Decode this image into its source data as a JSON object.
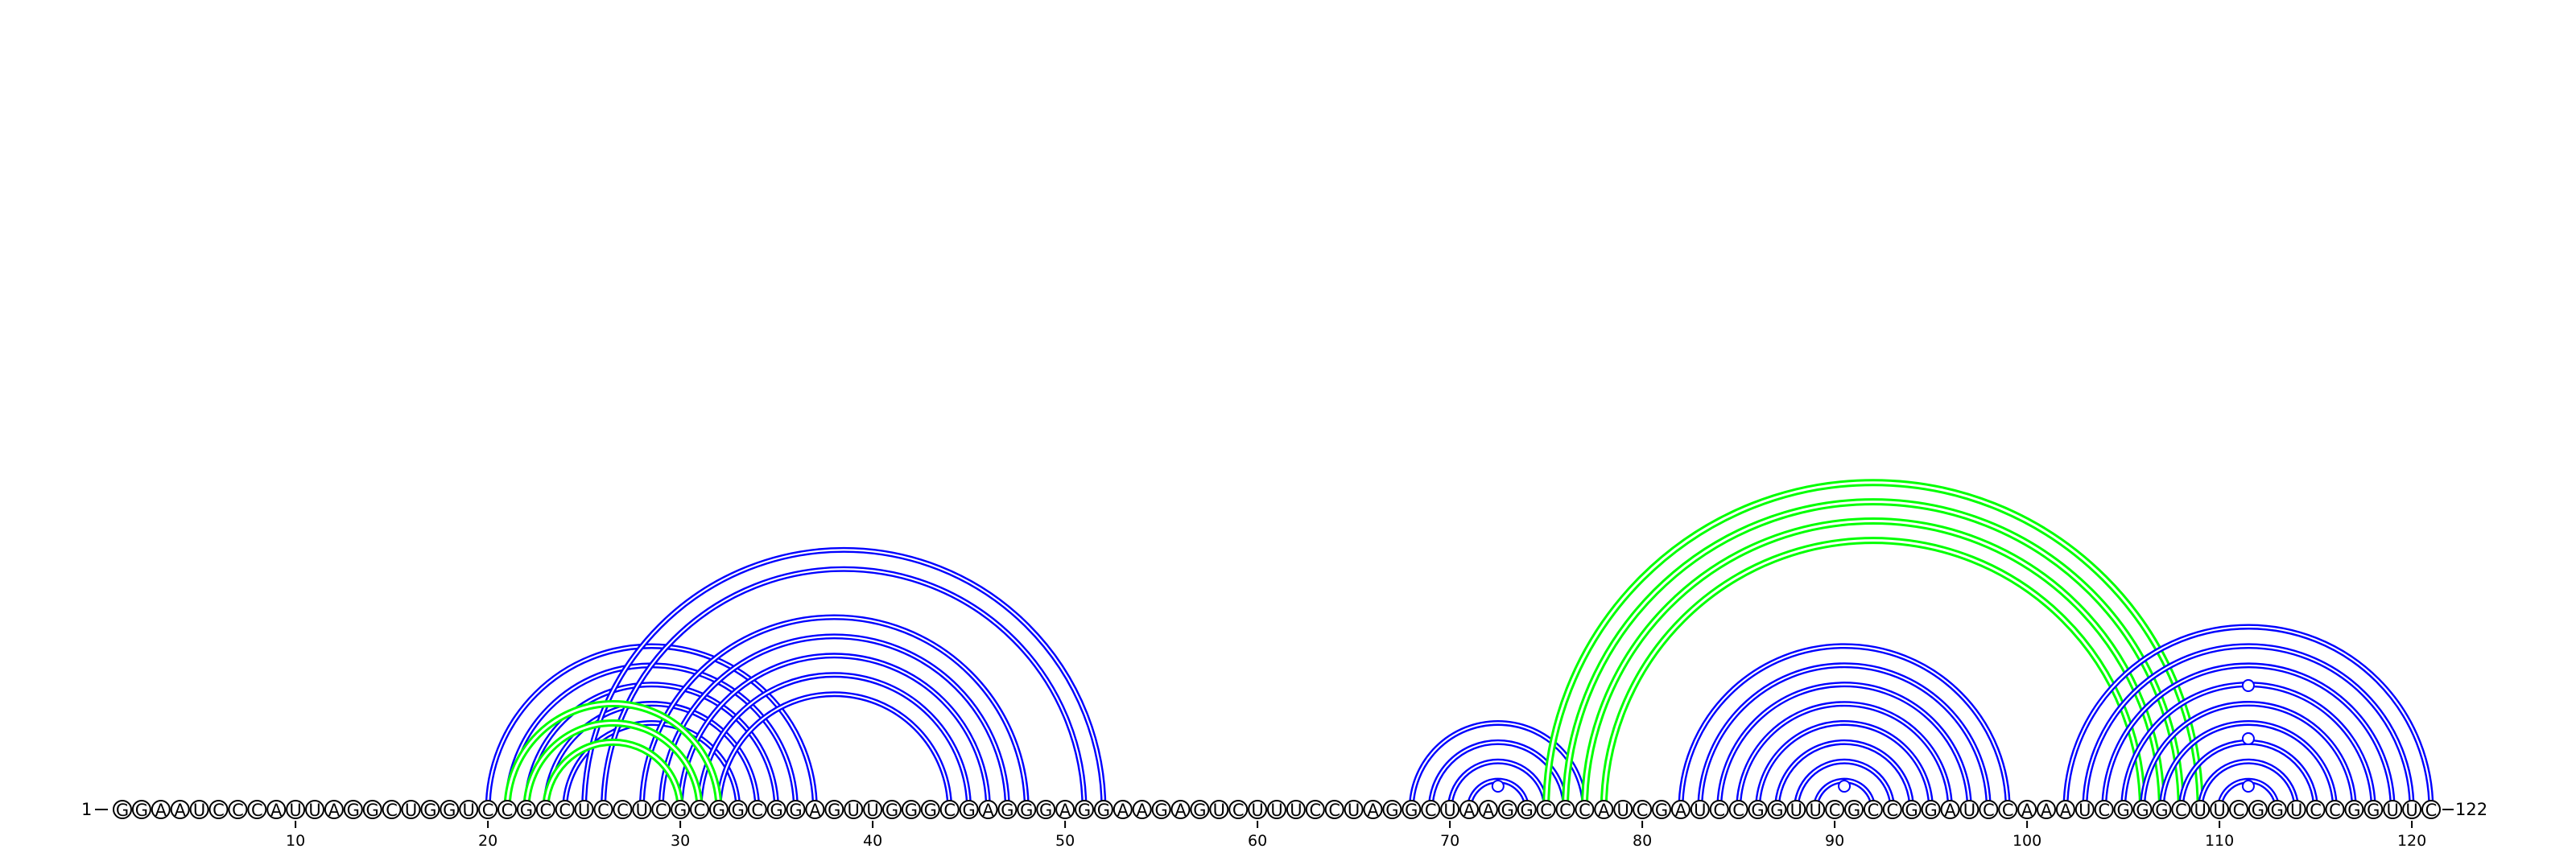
{
  "sequence": "GGAAUCCCAUUAGGCUGGUCCGCCUCCUCGCGGCGGAGUUGGGCGAGGGAGGAAGAGUCUUUCCUAGGCUAAGGCCCAUCGAUCCGGUUCGCCGGAUCCAAAUCGGGCUUCGGUCCGGUUC",
  "start_label": "1",
  "end_label": "122",
  "ticks": [
    "10",
    "20",
    "30",
    "40",
    "50",
    "60",
    "70",
    "80",
    "90",
    "100",
    "110",
    "120"
  ],
  "colors": {
    "helix_primary": "#0000ff",
    "helix_pseudoknot": "#00ff00",
    "nucleotide_outline": "#000000",
    "background": "#ffffff"
  },
  "helices": [
    {
      "color": "helix_primary",
      "pairs": [
        [
          20,
          37
        ],
        [
          21,
          36
        ],
        [
          22,
          35
        ],
        [
          23,
          34
        ],
        [
          24,
          33
        ]
      ]
    },
    {
      "color": "helix_primary",
      "pairs": [
        [
          25,
          52
        ],
        [
          26,
          51
        ]
      ]
    },
    {
      "color": "helix_primary",
      "pairs": [
        [
          28,
          48
        ],
        [
          29,
          47
        ],
        [
          30,
          46
        ],
        [
          31,
          45
        ],
        [
          32,
          44
        ]
      ]
    },
    {
      "color": "helix_pseudoknot",
      "pairs": [
        [
          21,
          32
        ],
        [
          22,
          31
        ],
        [
          23,
          30
        ]
      ]
    },
    {
      "color": "helix_primary",
      "pairs": [
        [
          68,
          77
        ],
        [
          69,
          76
        ],
        [
          70,
          75
        ],
        [
          71,
          74
        ]
      ]
    },
    {
      "color": "helix_pseudoknot",
      "pairs": [
        [
          75,
          109
        ],
        [
          76,
          108
        ],
        [
          77,
          107
        ],
        [
          78,
          106
        ]
      ]
    },
    {
      "color": "helix_primary",
      "pairs": [
        [
          82,
          99
        ],
        [
          83,
          98
        ],
        [
          84,
          97
        ],
        [
          85,
          96
        ],
        [
          86,
          95
        ],
        [
          87,
          94
        ],
        [
          88,
          93
        ],
        [
          89,
          92
        ]
      ]
    },
    {
      "color": "helix_primary",
      "pairs": [
        [
          102,
          121
        ],
        [
          103,
          120
        ],
        [
          104,
          119
        ],
        [
          105,
          118
        ],
        [
          106,
          117
        ],
        [
          107,
          116
        ],
        [
          108,
          115
        ],
        [
          109,
          114
        ],
        [
          110,
          113
        ]
      ]
    }
  ],
  "loop_markers": [
    72.5,
    90.5,
    111.5
  ]
}
